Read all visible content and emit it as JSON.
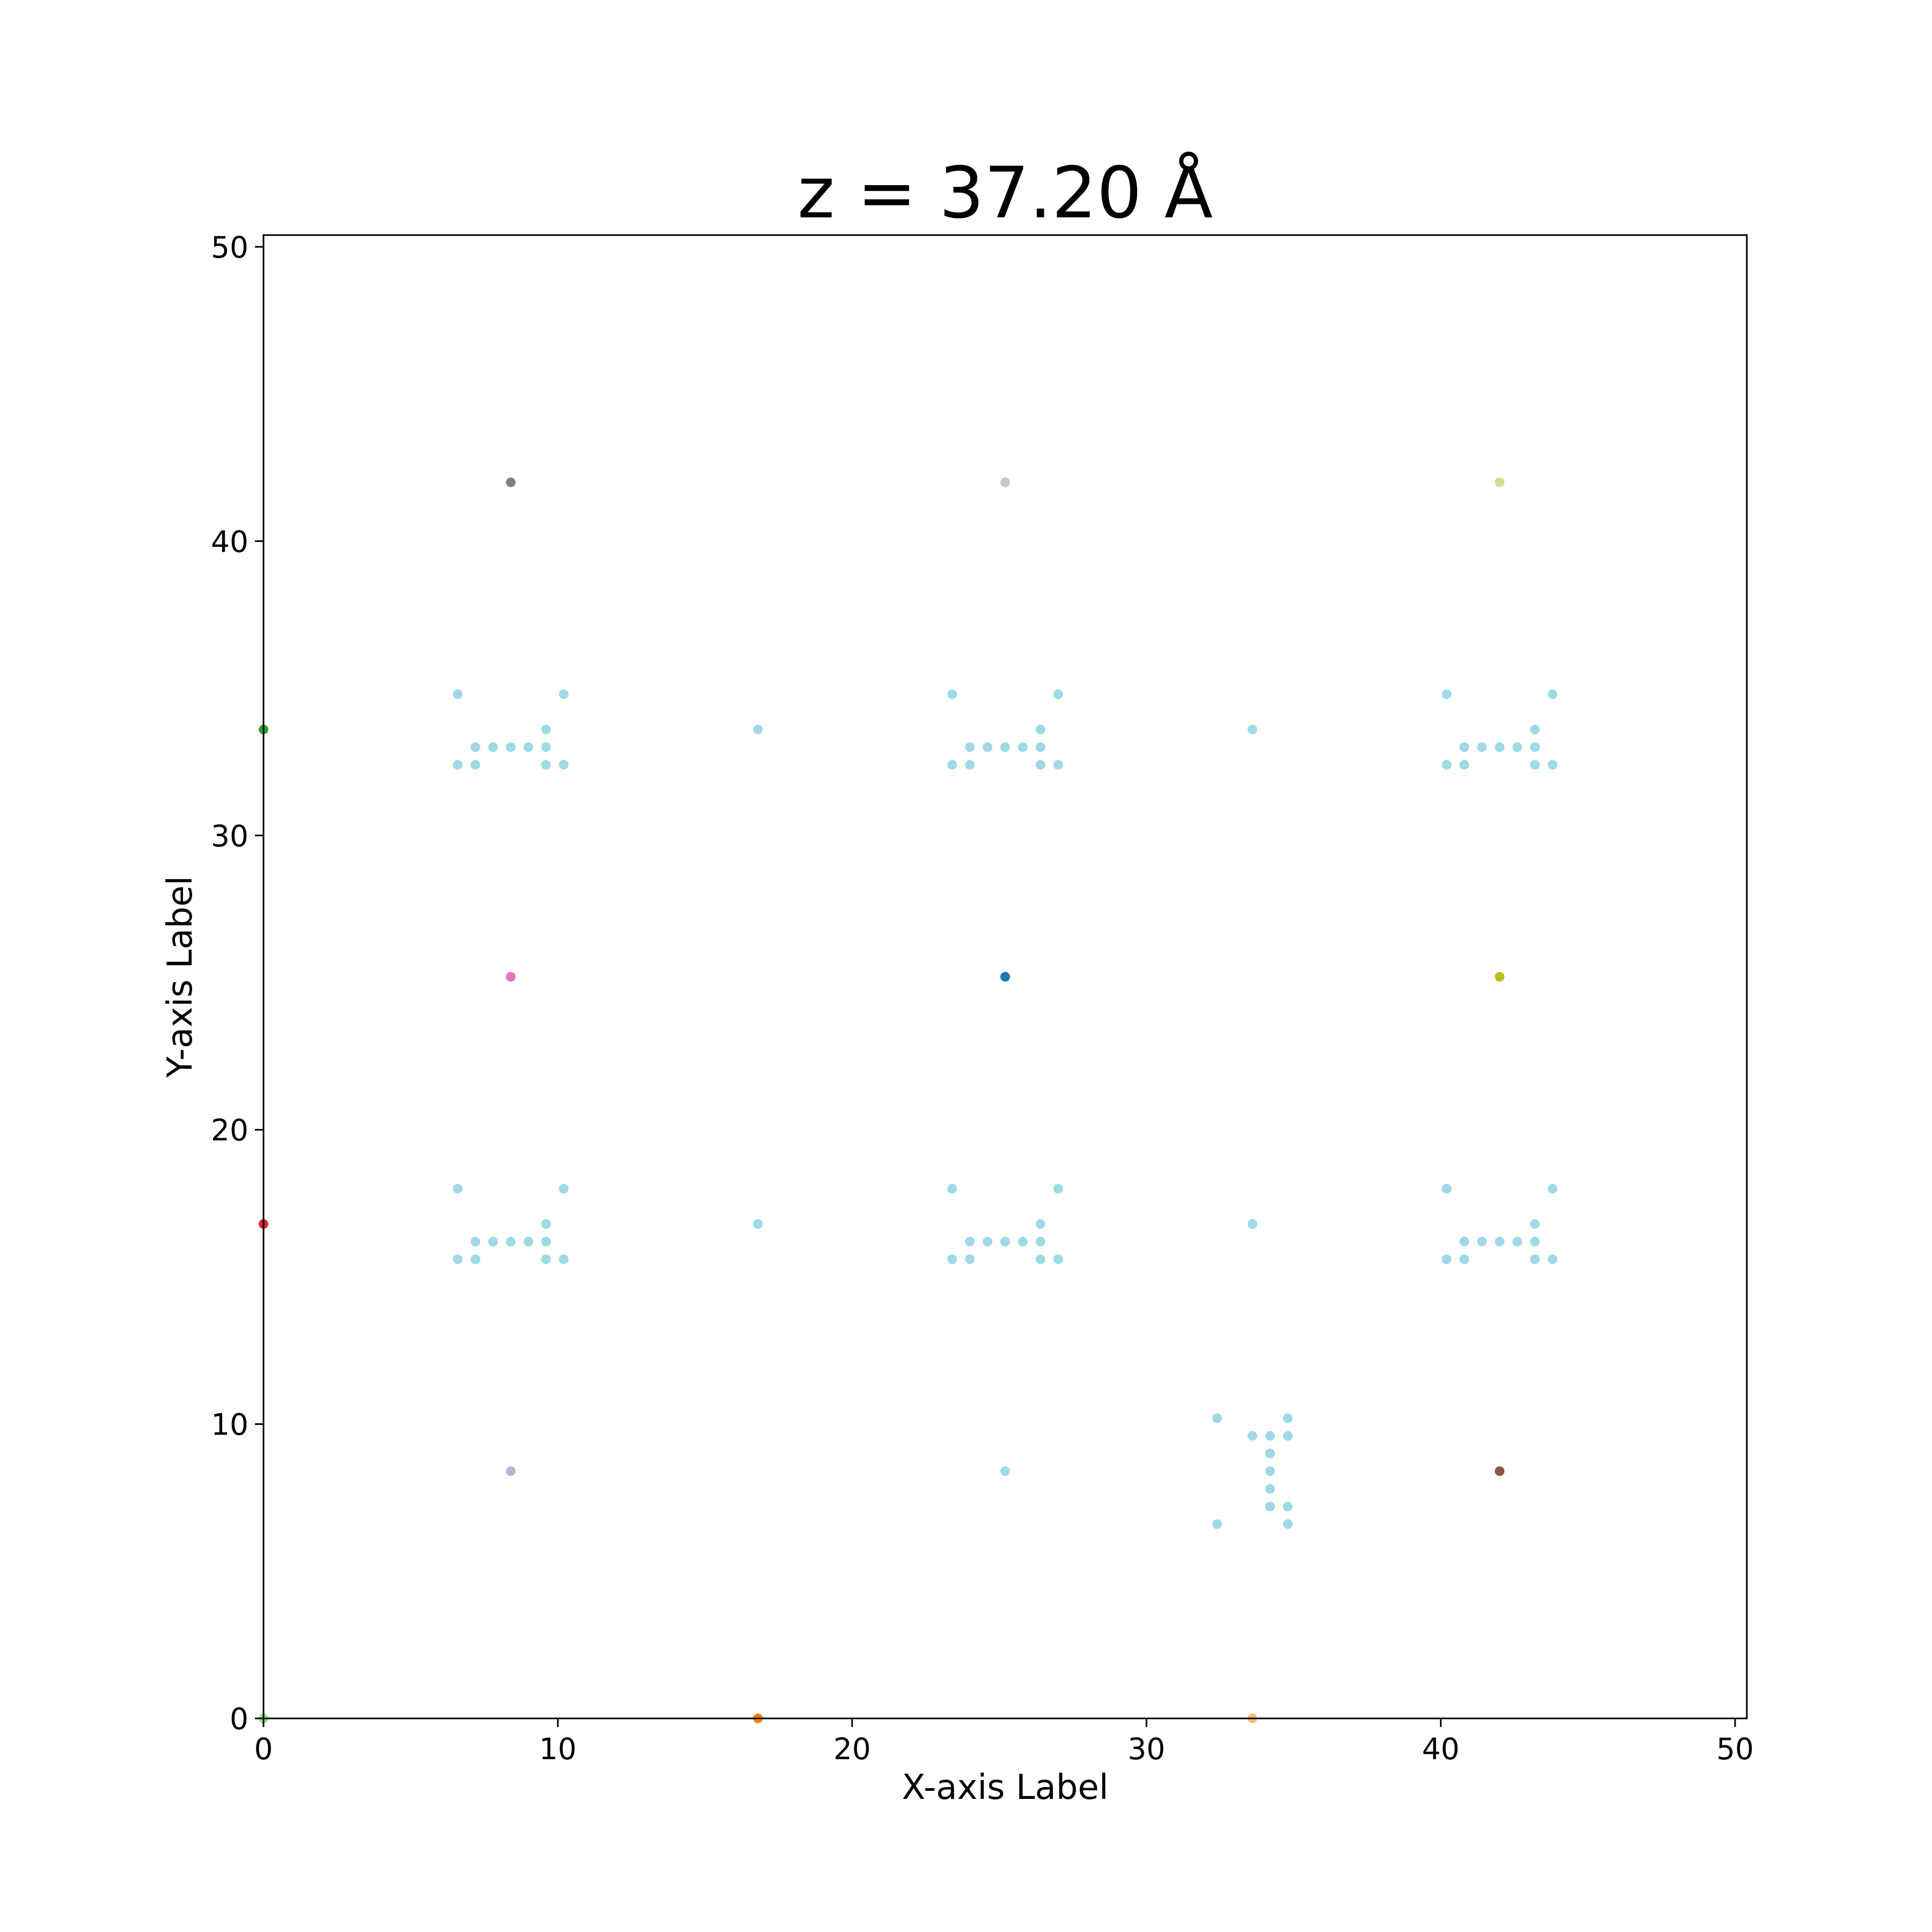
{
  "chart_data": {
    "type": "scatter",
    "title": "z = 37.20 Å",
    "xlabel": "X-axis Label",
    "ylabel": "Y-axis Label",
    "xlim": [
      0,
      50.4
    ],
    "ylim": [
      0,
      50.4
    ],
    "xticks": [
      0,
      10,
      20,
      30,
      40,
      50
    ],
    "yticks": [
      0,
      10,
      20,
      30,
      40,
      50
    ],
    "grid": false,
    "legend": "none",
    "series": [
      {
        "color": "#9edae5",
        "points": [
          [
            6.6,
            34.8
          ],
          [
            10.2,
            34.8
          ],
          [
            9.6,
            33.6
          ],
          [
            7.2,
            33.0
          ],
          [
            7.8,
            33.0
          ],
          [
            8.4,
            33.0
          ],
          [
            9.0,
            33.0
          ],
          [
            9.6,
            33.0
          ],
          [
            6.6,
            32.4
          ],
          [
            7.2,
            32.4
          ],
          [
            9.6,
            32.4
          ],
          [
            10.2,
            32.4
          ],
          [
            23.4,
            34.8
          ],
          [
            27.0,
            34.8
          ],
          [
            26.4,
            33.6
          ],
          [
            24.0,
            33.0
          ],
          [
            24.6,
            33.0
          ],
          [
            25.2,
            33.0
          ],
          [
            25.8,
            33.0
          ],
          [
            26.4,
            33.0
          ],
          [
            23.4,
            32.4
          ],
          [
            24.0,
            32.4
          ],
          [
            26.4,
            32.4
          ],
          [
            27.0,
            32.4
          ],
          [
            40.2,
            34.8
          ],
          [
            43.8,
            34.8
          ],
          [
            43.2,
            33.6
          ],
          [
            40.8,
            33.0
          ],
          [
            41.4,
            33.0
          ],
          [
            42.0,
            33.0
          ],
          [
            42.6,
            33.0
          ],
          [
            43.2,
            33.0
          ],
          [
            40.2,
            32.4
          ],
          [
            40.8,
            32.4
          ],
          [
            43.2,
            32.4
          ],
          [
            43.8,
            32.4
          ],
          [
            6.6,
            18.0
          ],
          [
            10.2,
            18.0
          ],
          [
            9.6,
            16.8
          ],
          [
            7.2,
            16.2
          ],
          [
            7.8,
            16.2
          ],
          [
            8.4,
            16.2
          ],
          [
            9.0,
            16.2
          ],
          [
            9.6,
            16.2
          ],
          [
            6.6,
            15.6
          ],
          [
            7.2,
            15.6
          ],
          [
            9.6,
            15.6
          ],
          [
            10.2,
            15.6
          ],
          [
            23.4,
            18.0
          ],
          [
            27.0,
            18.0
          ],
          [
            26.4,
            16.8
          ],
          [
            24.0,
            16.2
          ],
          [
            24.6,
            16.2
          ],
          [
            25.2,
            16.2
          ],
          [
            25.8,
            16.2
          ],
          [
            26.4,
            16.2
          ],
          [
            23.4,
            15.6
          ],
          [
            24.0,
            15.6
          ],
          [
            26.4,
            15.6
          ],
          [
            27.0,
            15.6
          ],
          [
            40.2,
            18.0
          ],
          [
            43.8,
            18.0
          ],
          [
            43.2,
            16.8
          ],
          [
            40.8,
            16.2
          ],
          [
            41.4,
            16.2
          ],
          [
            42.0,
            16.2
          ],
          [
            42.6,
            16.2
          ],
          [
            43.2,
            16.2
          ],
          [
            40.2,
            15.6
          ],
          [
            40.8,
            15.6
          ],
          [
            43.2,
            15.6
          ],
          [
            43.8,
            15.6
          ],
          [
            16.8,
            33.6
          ],
          [
            33.6,
            33.6
          ],
          [
            16.8,
            16.8
          ],
          [
            33.6,
            16.8
          ],
          [
            25.2,
            8.4
          ],
          [
            32.4,
            10.2
          ],
          [
            34.8,
            10.2
          ],
          [
            33.6,
            9.6
          ],
          [
            34.2,
            9.6
          ],
          [
            34.8,
            9.6
          ],
          [
            34.2,
            9.0
          ],
          [
            34.2,
            8.4
          ],
          [
            34.2,
            7.8
          ],
          [
            34.2,
            7.2
          ],
          [
            34.8,
            7.2
          ],
          [
            32.4,
            6.6
          ],
          [
            34.8,
            6.6
          ]
        ]
      },
      {
        "color": "#7f7f7f",
        "points": [
          [
            8.4,
            42.0
          ]
        ]
      },
      {
        "color": "#c7c7c7",
        "points": [
          [
            25.2,
            42.0
          ]
        ]
      },
      {
        "color": "#dbdb8d",
        "points": [
          [
            42.0,
            42.0
          ]
        ]
      },
      {
        "color": "#e377c2",
        "points": [
          [
            8.4,
            25.2
          ]
        ]
      },
      {
        "color": "#1f77b4",
        "points": [
          [
            25.2,
            25.2
          ]
        ]
      },
      {
        "color": "#bcbd22",
        "points": [
          [
            42.0,
            25.2
          ]
        ]
      },
      {
        "color": "#c5b0d5",
        "points": [
          [
            8.4,
            8.4
          ]
        ]
      },
      {
        "color": "#8c564b",
        "points": [
          [
            42.0,
            8.4
          ]
        ]
      },
      {
        "color": "#2ca02c",
        "points": [
          [
            0.0,
            33.6
          ]
        ]
      },
      {
        "color": "#d62728",
        "points": [
          [
            0.0,
            16.8
          ]
        ]
      },
      {
        "color": "#ff7f0e",
        "points": [
          [
            16.8,
            0.0
          ]
        ]
      },
      {
        "color": "#ffbb78",
        "points": [
          [
            33.6,
            0.0
          ]
        ]
      },
      {
        "color": "#98df8a",
        "points": [
          [
            0.0,
            0.0
          ]
        ]
      }
    ]
  }
}
